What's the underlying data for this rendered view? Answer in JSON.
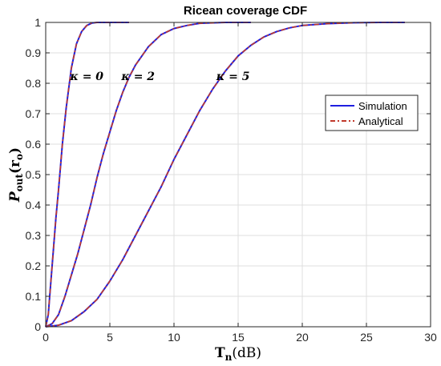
{
  "chart_data": {
    "type": "line",
    "title": "Ricean coverage CDF",
    "xlabel": "T",
    "xlabel_sub": "n",
    "xlabel_unit": "(dB)",
    "ylabel": "P",
    "ylabel_sub": "out",
    "ylabel_arg": "(r",
    "ylabel_arg_sub": "o",
    "ylabel_arg_close": ")",
    "xlim": [
      0,
      30
    ],
    "ylim": [
      0,
      1
    ],
    "xticks": [
      0,
      5,
      10,
      15,
      20,
      25,
      30
    ],
    "yticks": [
      0,
      0.1,
      0.2,
      0.3,
      0.4,
      0.5,
      0.6,
      0.7,
      0.8,
      0.9,
      1
    ],
    "xtick_labels": [
      "0",
      "5",
      "10",
      "15",
      "20",
      "25",
      "30"
    ],
    "ytick_labels": [
      "0",
      "0.1",
      "0.2",
      "0.3",
      "0.4",
      "0.5",
      "0.6",
      "0.7",
      "0.8",
      "0.9",
      "1"
    ],
    "grid": true,
    "legend": "right",
    "legend_entries": [
      {
        "name": "Simulation",
        "color": "#1f1fe0",
        "style": "solid"
      },
      {
        "name": "Analytical",
        "color": "#c0392b",
        "style": "dashdot"
      }
    ],
    "annotations": [
      {
        "text": "κ = 0",
        "x": 3.2,
        "y": 0.81
      },
      {
        "text": "κ = 2",
        "x": 7.2,
        "y": 0.81
      },
      {
        "text": "κ = 5",
        "x": 14.6,
        "y": 0.81
      }
    ],
    "series": [
      {
        "name": "κ = 0",
        "x": [
          0,
          0.2,
          0.5,
          0.8,
          1.0,
          1.3,
          1.6,
          2.0,
          2.4,
          2.8,
          3.2,
          3.6,
          4.0,
          5.0,
          6.5
        ],
        "values": [
          0,
          0.04,
          0.2,
          0.36,
          0.45,
          0.6,
          0.72,
          0.85,
          0.93,
          0.97,
          0.99,
          0.998,
          1.0,
          1.0,
          1.0
        ]
      },
      {
        "name": "κ = 2",
        "x": [
          0,
          0.5,
          1.0,
          1.5,
          2.0,
          2.5,
          3.0,
          3.5,
          4.0,
          4.5,
          5.0,
          5.5,
          6.0,
          6.5,
          7.0,
          8.0,
          9.0,
          10.0,
          11.0,
          12.0,
          14.0,
          16.0
        ],
        "values": [
          0,
          0.01,
          0.04,
          0.1,
          0.17,
          0.24,
          0.32,
          0.4,
          0.49,
          0.57,
          0.64,
          0.71,
          0.77,
          0.82,
          0.86,
          0.92,
          0.96,
          0.98,
          0.99,
          0.997,
          1.0,
          1.0
        ]
      },
      {
        "name": "κ = 5",
        "x": [
          0,
          1,
          2,
          3,
          4,
          5,
          6,
          7,
          8,
          9,
          10,
          11,
          12,
          13,
          14,
          15,
          16,
          17,
          18,
          19,
          20,
          22,
          24,
          26,
          28
        ],
        "values": [
          0,
          0.005,
          0.02,
          0.05,
          0.09,
          0.15,
          0.22,
          0.3,
          0.38,
          0.46,
          0.55,
          0.63,
          0.71,
          0.78,
          0.84,
          0.89,
          0.925,
          0.952,
          0.97,
          0.982,
          0.99,
          0.996,
          0.999,
          1.0,
          1.0
        ]
      }
    ]
  }
}
